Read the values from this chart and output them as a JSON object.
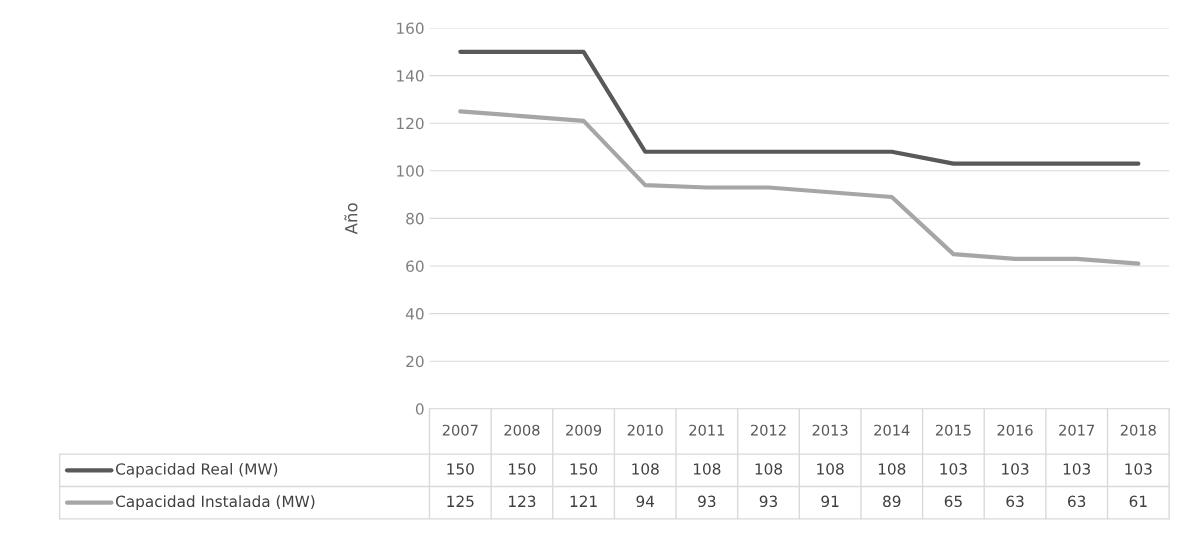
{
  "chart_data": {
    "type": "line",
    "ylabel": "Año",
    "categories": [
      "2007",
      "2008",
      "2009",
      "2010",
      "2011",
      "2012",
      "2013",
      "2014",
      "2015",
      "2016",
      "2017",
      "2018"
    ],
    "series": [
      {
        "name": "Capacidad Real (MW)",
        "color": "#595959",
        "values": [
          150,
          150,
          150,
          108,
          108,
          108,
          108,
          108,
          103,
          103,
          103,
          103
        ]
      },
      {
        "name": "Capacidad Instalada (MW)",
        "color": "#a6a6a6",
        "values": [
          125,
          123,
          121,
          94,
          93,
          93,
          91,
          89,
          65,
          63,
          63,
          61
        ]
      }
    ],
    "ylim": [
      0,
      160
    ],
    "yticks": [
      0,
      20,
      40,
      60,
      80,
      100,
      120,
      140,
      160
    ],
    "grid": "y",
    "legend": "bottom",
    "data_labels": true,
    "marker": "none",
    "line_style": "solid"
  }
}
